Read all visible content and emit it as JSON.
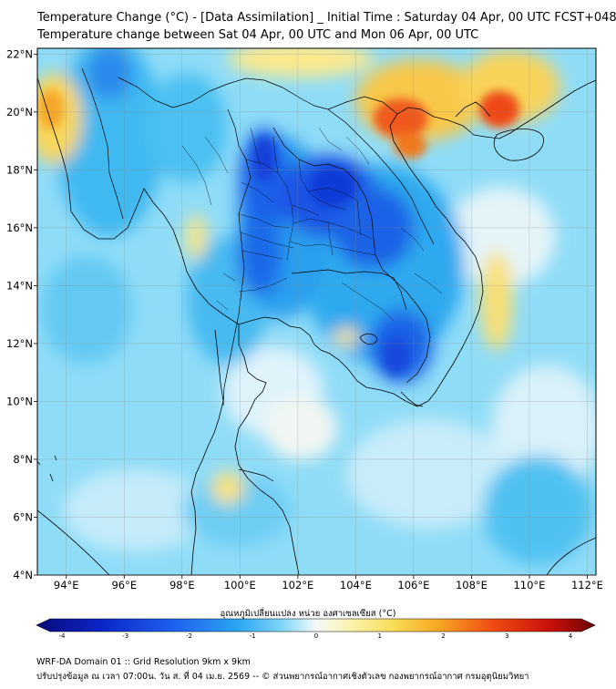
{
  "title": {
    "line1": "Temperature Change (°C) - [Data Assimilation] _ Initial Time : Saturday 04 Apr, 00 UTC FCST+048",
    "line2": "Temperature change between Sat 04 Apr, 00 UTC and Mon 06 Apr, 00 UTC"
  },
  "axes": {
    "lon_ticks": [
      "94°E",
      "96°E",
      "98°E",
      "100°E",
      "102°E",
      "104°E",
      "106°E",
      "108°E",
      "110°E",
      "112°E"
    ],
    "lon_values": [
      94,
      96,
      98,
      100,
      102,
      104,
      106,
      108,
      110,
      112
    ],
    "lat_ticks": [
      "22°N",
      "20°N",
      "18°N",
      "16°N",
      "14°N",
      "12°N",
      "10°N",
      "8°N",
      "6°N",
      "4°N"
    ],
    "lat_values": [
      22,
      20,
      18,
      16,
      14,
      12,
      10,
      8,
      6,
      4
    ],
    "lon_range": [
      93,
      112.3
    ],
    "lat_range": [
      4,
      22.2
    ]
  },
  "colorbar": {
    "label": "อุณหภูมิเปลี่ยนแปลง หน่วย องศาเซลเซียส (°C)",
    "tick_labels": [
      "-4",
      "-3",
      "-2",
      "-1",
      "0",
      "1",
      "2",
      "3",
      "4"
    ],
    "tick_values": [
      -4,
      -3,
      -2,
      -1,
      0,
      1,
      2,
      3,
      4
    ],
    "range": [
      -4,
      4
    ]
  },
  "footer": {
    "line1": "WRF-DA Domain 01 :: Grid Resolution 9km x 9km",
    "line2": "ปรับปรุงข้อมูล ณ เวลา 07:00น. วัน ส. ที่ 04 เม.ย. 2569 -- © ส่วนพยากรณ์อากาศเชิงตัวเลข กองพยากรณ์อากาศ กรมอุตุนิยมวิทยา"
  },
  "colors": {
    "strong_cool": "#0b3fd6",
    "cool": "#33bdf0",
    "light_cool": "#9fe3f8",
    "neutral": "#f7fbfd",
    "warm": "#f8e27a",
    "hot": "#ee2a12"
  }
}
